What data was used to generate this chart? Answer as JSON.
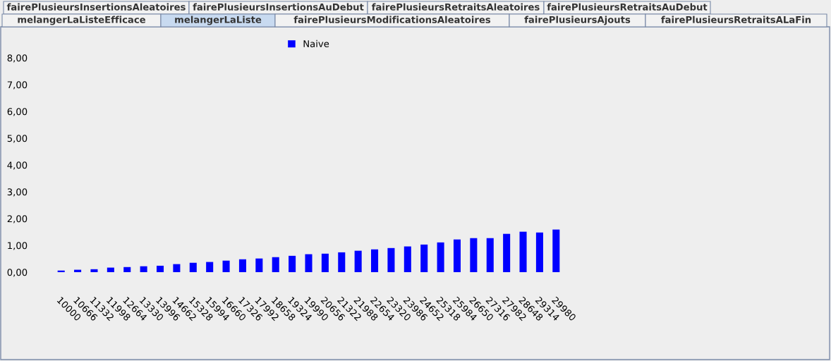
{
  "chart_data": {
    "type": "bar",
    "categories": [
      "10000",
      "10666",
      "11332",
      "11998",
      "12664",
      "13330",
      "13996",
      "14662",
      "15328",
      "15994",
      "16660",
      "17326",
      "17992",
      "18658",
      "19324",
      "19990",
      "20656",
      "21322",
      "21988",
      "22654",
      "23320",
      "23986",
      "24652",
      "25318",
      "25984",
      "26650",
      "27316",
      "27982",
      "28648",
      "29314",
      "29980"
    ],
    "series": [
      {
        "name": "Naive",
        "color": "#0000ff",
        "values": [
          0.06,
          0.09,
          0.11,
          0.17,
          0.19,
          0.22,
          0.24,
          0.3,
          0.35,
          0.38,
          0.43,
          0.48,
          0.51,
          0.56,
          0.61,
          0.67,
          0.69,
          0.74,
          0.8,
          0.85,
          0.9,
          0.96,
          1.03,
          1.11,
          1.22,
          1.27,
          1.27,
          1.43,
          1.51,
          1.48,
          1.59
        ]
      }
    ],
    "ylim": [
      0,
      8.8
    ],
    "yticks": [
      {
        "value": 0,
        "label": "0,00"
      },
      {
        "value": 1,
        "label": "1,00"
      },
      {
        "value": 2,
        "label": "2,00"
      },
      {
        "value": 3,
        "label": "3,00"
      },
      {
        "value": 4,
        "label": "4,00"
      },
      {
        "value": 5,
        "label": "5,00"
      },
      {
        "value": 6,
        "label": "6,00"
      },
      {
        "value": 7,
        "label": "7,00"
      },
      {
        "value": 8,
        "label": "8,00"
      }
    ],
    "legend": "top",
    "grid": false,
    "annotations": [
      "fairePlusieursInsertionsAleatoires",
      "fairePlusieursInsertionsAuDebut",
      "fairePlusieursRetraitsAleatoires",
      "fairePlusieursRetraitsAuDebut",
      "melangerLaListeEfficace",
      "melangerLaListe",
      "fairePlusieursModificationsAleatoires",
      "fairePlusieursAjouts",
      "fairePlusieursRetraitsALaFin"
    ]
  }
}
